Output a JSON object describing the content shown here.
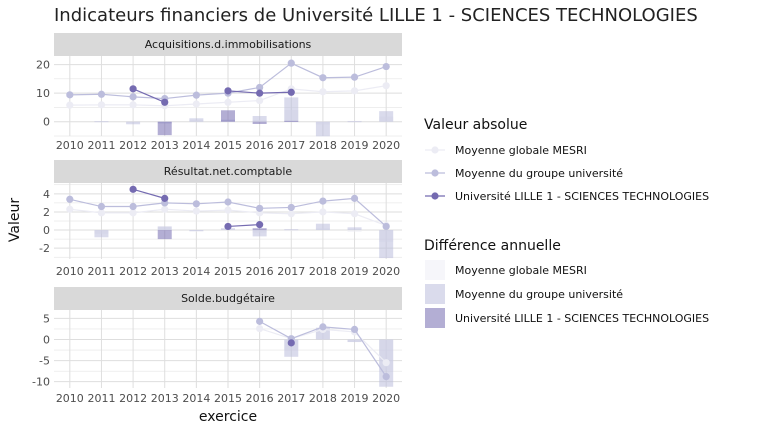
{
  "chart_data": {
    "type": "line",
    "title": "Indicateurs financiers de Université LILLE 1 - SCIENCES TECHNOLOGIES",
    "xlabel": "exercice",
    "ylabel": "Valeur",
    "x": [
      2010,
      2011,
      2012,
      2013,
      2014,
      2015,
      2016,
      2017,
      2018,
      2019,
      2020
    ],
    "colors": {
      "mesri": "#ececf4",
      "groupe": "#bcbddc",
      "univ": "#756bb1",
      "grid": "#dedede",
      "strip": "#d9d9d9"
    },
    "panels": [
      {
        "name": "Acquisitions.d.immobilisations",
        "ylim": [
          -5,
          23
        ],
        "yticks": [
          0,
          10,
          20
        ],
        "lines": {
          "mesri": [
            5.8,
            5.9,
            5.9,
            5.6,
            6.2,
            6.8,
            7.4,
            11.5,
            10.5,
            10.8,
            12.6
          ],
          "groupe": [
            9.4,
            9.6,
            8.7,
            8.1,
            9.3,
            10.0,
            12.0,
            20.5,
            15.4,
            15.6,
            19.3
          ],
          "univ": [
            null,
            null,
            11.5,
            6.8,
            null,
            10.8,
            10.0,
            10.3,
            null,
            null,
            null
          ]
        },
        "bars": {
          "mesri": [
            null,
            0.1,
            0.0,
            -0.3,
            0.6,
            0.6,
            0.6,
            4.1,
            -1.0,
            0.3,
            1.8
          ],
          "groupe": [
            null,
            0.2,
            -0.9,
            -0.6,
            1.2,
            0.7,
            2.0,
            8.5,
            -5.1,
            0.2,
            3.7
          ],
          "univ": [
            null,
            null,
            null,
            -4.7,
            null,
            4.0,
            -0.8,
            0.3,
            null,
            null,
            null
          ]
        }
      },
      {
        "name": "Résultat.net.comptable",
        "ylim": [
          -3.2,
          5.2
        ],
        "yticks": [
          -2,
          0,
          2,
          4
        ],
        "lines": {
          "mesri": [
            2.3,
            1.9,
            1.9,
            2.3,
            2.1,
            2.2,
            1.9,
            1.8,
            2.0,
            1.8,
            0.5
          ],
          "groupe": [
            3.4,
            2.6,
            2.6,
            3.0,
            2.9,
            3.1,
            2.4,
            2.5,
            3.2,
            3.5,
            0.4
          ],
          "univ": [
            null,
            null,
            4.5,
            3.5,
            null,
            0.4,
            0.6,
            null,
            null,
            null,
            null
          ]
        },
        "bars": {
          "mesri": [
            null,
            -0.4,
            0.0,
            0.4,
            -0.2,
            0.1,
            -0.3,
            -0.1,
            0.2,
            -0.2,
            -1.3
          ],
          "groupe": [
            null,
            -0.8,
            0.0,
            0.4,
            -0.1,
            0.2,
            -0.7,
            0.1,
            0.7,
            0.3,
            -3.1
          ],
          "univ": [
            null,
            null,
            null,
            -1.0,
            null,
            null,
            0.2,
            null,
            null,
            null,
            null
          ]
        }
      },
      {
        "name": "Solde.budgétaire",
        "ylim": [
          -11.5,
          7.0
        ],
        "yticks": [
          -10,
          -5,
          0,
          5
        ],
        "lines": {
          "mesri": [
            null,
            null,
            null,
            null,
            null,
            null,
            2.6,
            0.2,
            2.4,
            1.8,
            -5.5
          ],
          "groupe": [
            null,
            null,
            null,
            null,
            null,
            null,
            4.3,
            0.2,
            3.0,
            2.4,
            -8.8
          ],
          "univ": [
            null,
            null,
            null,
            null,
            null,
            null,
            null,
            -0.8,
            null,
            null,
            null
          ]
        },
        "bars": {
          "mesri": [
            null,
            null,
            null,
            null,
            null,
            null,
            null,
            -2.4,
            2.2,
            -0.6,
            -7.3
          ],
          "groupe": [
            null,
            null,
            null,
            null,
            null,
            null,
            null,
            -4.1,
            2.8,
            -0.6,
            -11.2
          ],
          "univ": [
            null,
            null,
            null,
            null,
            null,
            null,
            null,
            null,
            null,
            null,
            null
          ]
        }
      }
    ],
    "legend": {
      "position": "right",
      "lines_title": "Valeur absolue",
      "bars_title": "Différence annuelle",
      "entries": [
        {
          "key": "mesri",
          "label": "Moyenne globale MESRI"
        },
        {
          "key": "groupe",
          "label": "Moyenne du groupe université"
        },
        {
          "key": "univ",
          "label": "Université LILLE 1 - SCIENCES TECHNOLOGIES"
        }
      ]
    }
  }
}
